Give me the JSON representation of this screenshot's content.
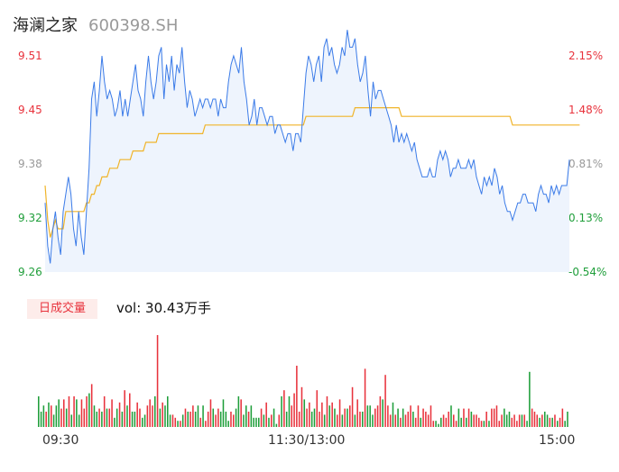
{
  "header": {
    "name": "海澜之家",
    "code": "600398.SH"
  },
  "chart_data": {
    "type": "line",
    "price_axis": {
      "left_ticks": [
        "9.51",
        "9.45",
        "9.38",
        "9.32",
        "9.26"
      ],
      "right_ticks": [
        "2.15%",
        "1.48%",
        "0.81%",
        "0.13%",
        "-0.54%"
      ],
      "ylim": [
        9.26,
        9.51
      ]
    },
    "x_ticks": [
      "09:30",
      "11:30/13:00",
      "15:00"
    ],
    "volume_badge": "日成交量",
    "volume_text": "vol: 30.43万手",
    "colors": {
      "price": "#3b7be8",
      "avg": "#f0b429",
      "up": "#e8323c",
      "down": "#1f9e3a",
      "fill": "#eef4fd"
    },
    "series": [
      {
        "values": [
          9.34,
          9.29,
          9.27,
          9.31,
          9.33,
          9.3,
          9.28,
          9.33,
          9.35,
          9.37,
          9.35,
          9.31,
          9.29,
          9.33,
          9.3,
          9.28,
          9.33,
          9.38,
          9.46,
          9.48,
          9.44,
          9.47,
          9.51,
          9.48,
          9.46,
          9.47,
          9.46,
          9.44,
          9.45,
          9.47,
          9.44,
          9.46,
          9.44,
          9.46,
          9.48,
          9.5,
          9.47,
          9.46,
          9.44,
          9.48,
          9.51,
          9.48,
          9.46,
          9.48,
          9.51,
          9.52,
          9.46,
          9.5,
          9.48,
          9.51,
          9.47,
          9.5,
          9.49,
          9.52,
          9.48,
          9.45,
          9.47,
          9.46,
          9.44,
          9.45,
          9.46,
          9.45,
          9.46,
          9.46,
          9.45,
          9.46,
          9.46,
          9.44,
          9.46,
          9.45,
          9.45,
          9.48,
          9.5,
          9.51,
          9.5,
          9.49,
          9.52,
          9.48,
          9.46,
          9.43,
          9.44,
          9.46,
          9.43,
          9.45,
          9.45,
          9.44,
          9.43,
          9.44,
          9.44,
          9.42,
          9.43,
          9.43,
          9.42,
          9.41,
          9.42,
          9.42,
          9.4,
          9.42,
          9.42,
          9.41,
          9.45,
          9.49,
          9.51,
          9.5,
          9.48,
          9.5,
          9.51,
          9.48,
          9.52,
          9.53,
          9.51,
          9.52,
          9.5,
          9.49,
          9.5,
          9.52,
          9.51,
          9.54,
          9.52,
          9.52,
          9.53,
          9.5,
          9.48,
          9.49,
          9.51,
          9.47,
          9.44,
          9.48,
          9.46,
          9.47,
          9.47,
          9.46,
          9.45,
          9.44,
          9.43,
          9.41,
          9.43,
          9.41,
          9.42,
          9.41,
          9.42,
          9.41,
          9.4,
          9.41,
          9.39,
          9.38,
          9.37,
          9.37,
          9.37,
          9.38,
          9.37,
          9.37,
          9.39,
          9.4,
          9.39,
          9.4,
          9.39,
          9.37,
          9.38,
          9.38,
          9.39,
          9.38,
          9.38,
          9.38,
          9.39,
          9.38,
          9.39,
          9.37,
          9.36,
          9.35,
          9.37,
          9.36,
          9.37,
          9.36,
          9.38,
          9.37,
          9.35,
          9.36,
          9.34,
          9.33,
          9.33,
          9.32,
          9.33,
          9.34,
          9.34,
          9.35,
          9.35,
          9.34,
          9.34,
          9.34,
          9.33,
          9.35,
          9.36,
          9.35,
          9.35,
          9.34,
          9.36,
          9.35,
          9.36,
          9.35,
          9.36,
          9.36,
          9.36,
          9.39
        ]
      },
      {
        "values": [
          9.36,
          9.32,
          9.3,
          9.31,
          9.32,
          9.31,
          9.31,
          9.31,
          9.33,
          9.33,
          9.33,
          9.33,
          9.33,
          9.33,
          9.33,
          9.33,
          9.34,
          9.34,
          9.35,
          9.35,
          9.36,
          9.36,
          9.37,
          9.37,
          9.37,
          9.38,
          9.38,
          9.38,
          9.38,
          9.39,
          9.39,
          9.39,
          9.39,
          9.39,
          9.4,
          9.4,
          9.4,
          9.4,
          9.4,
          9.41,
          9.41,
          9.41,
          9.41,
          9.41,
          9.42,
          9.42,
          9.42,
          9.42,
          9.42,
          9.42,
          9.42,
          9.42,
          9.42,
          9.42,
          9.42,
          9.42,
          9.42,
          9.42,
          9.42,
          9.42,
          9.42,
          9.42,
          9.43,
          9.43,
          9.43,
          9.43,
          9.43,
          9.43,
          9.43,
          9.43,
          9.43,
          9.43,
          9.43,
          9.43,
          9.43,
          9.43,
          9.43,
          9.43,
          9.43,
          9.43,
          9.43,
          9.43,
          9.43,
          9.43,
          9.43,
          9.43,
          9.43,
          9.43,
          9.43,
          9.43,
          9.43,
          9.43,
          9.43,
          9.43,
          9.43,
          9.43,
          9.43,
          9.43,
          9.43,
          9.43,
          9.43,
          9.44,
          9.44,
          9.44,
          9.44,
          9.44,
          9.44,
          9.44,
          9.44,
          9.44,
          9.44,
          9.44,
          9.44,
          9.44,
          9.44,
          9.44,
          9.44,
          9.44,
          9.44,
          9.44,
          9.45,
          9.45,
          9.45,
          9.45,
          9.45,
          9.45,
          9.45,
          9.45,
          9.45,
          9.45,
          9.45,
          9.45,
          9.45,
          9.45,
          9.45,
          9.45,
          9.45,
          9.45,
          9.44,
          9.44,
          9.44,
          9.44,
          9.44,
          9.44,
          9.44,
          9.44,
          9.44,
          9.44,
          9.44,
          9.44,
          9.44,
          9.44,
          9.44,
          9.44,
          9.44,
          9.44,
          9.44,
          9.44,
          9.44,
          9.44,
          9.44,
          9.44,
          9.44,
          9.44,
          9.44,
          9.44,
          9.44,
          9.44,
          9.44,
          9.44,
          9.44,
          9.44,
          9.44,
          9.44,
          9.44,
          9.44,
          9.44,
          9.44,
          9.44,
          9.44,
          9.44,
          9.43,
          9.43,
          9.43,
          9.43,
          9.43,
          9.43,
          9.43,
          9.43,
          9.43,
          9.43,
          9.43,
          9.43,
          9.43,
          9.43,
          9.43,
          9.43,
          9.43,
          9.43,
          9.43,
          9.43,
          9.43,
          9.43,
          9.43,
          9.43,
          9.43,
          9.43,
          9.43
        ]
      }
    ],
    "volume": {
      "values": [
        10,
        5,
        7,
        5,
        8,
        7,
        4,
        7,
        9,
        6,
        9,
        6,
        10,
        4,
        10,
        9,
        4,
        9,
        6,
        10,
        11,
        14,
        7,
        5,
        6,
        5,
        10,
        6,
        6,
        9,
        3,
        6,
        8,
        5,
        12,
        7,
        11,
        5,
        5,
        8,
        6,
        3,
        4,
        7,
        9,
        7,
        10,
        30,
        6,
        8,
        7,
        10,
        4,
        4,
        3,
        2,
        2,
        4,
        6,
        5,
        5,
        7,
        5,
        7,
        3,
        7,
        2,
        5,
        9,
        6,
        4,
        6,
        5,
        9,
        5,
        2,
        5,
        4,
        6,
        10,
        9,
        4,
        7,
        5,
        7,
        3,
        3,
        3,
        6,
        4,
        8,
        3,
        4,
        6,
        1,
        4,
        10,
        12,
        5,
        10,
        7,
        11,
        20,
        5,
        13,
        9,
        6,
        8,
        5,
        6,
        12,
        5,
        8,
        4,
        10,
        7,
        8,
        6,
        4,
        9,
        4,
        6,
        6,
        7,
        13,
        4,
        9,
        5,
        5,
        19,
        7,
        7,
        4,
        6,
        7,
        10,
        9,
        17,
        7,
        4,
        8,
        4,
        6,
        3,
        6,
        4,
        5,
        7,
        5,
        3,
        7,
        3,
        6,
        5,
        4,
        7,
        2,
        2,
        1,
        3,
        4,
        3,
        5,
        7,
        4,
        2,
        6,
        3,
        6,
        3,
        6,
        5,
        4,
        4,
        3,
        2,
        2,
        5,
        2,
        6,
        6,
        7,
        2,
        4,
        6,
        4,
        5,
        3,
        4,
        2,
        4,
        4,
        4,
        2,
        18,
        6,
        5,
        4,
        3,
        4,
        5,
        4,
        3,
        3,
        4,
        2,
        3,
        6,
        2,
        5
      ],
      "up": [
        0,
        0,
        0,
        1,
        0,
        1,
        0,
        0,
        0,
        1,
        1,
        0,
        1,
        0,
        1,
        0,
        0,
        1,
        1,
        1,
        0,
        1,
        0,
        0,
        1,
        0,
        1,
        0,
        1,
        1,
        0,
        0,
        1,
        0,
        1,
        0,
        1,
        0,
        0,
        1,
        1,
        0,
        0,
        1,
        1,
        1,
        0,
        1,
        0,
        1,
        0,
        0,
        0,
        1,
        1,
        0,
        1,
        0,
        1,
        0,
        1,
        1,
        0,
        0,
        1,
        0,
        1,
        1,
        1,
        0,
        1,
        1,
        0,
        0,
        0,
        0,
        1,
        1,
        0,
        0,
        1,
        0,
        0,
        1,
        0,
        0,
        0,
        0,
        1,
        0,
        1,
        0,
        1,
        0,
        0,
        1,
        0,
        1,
        0,
        0,
        1,
        1,
        1,
        1,
        1,
        0,
        1,
        1,
        0,
        0,
        1,
        1,
        1,
        0,
        1,
        0,
        1,
        0,
        1,
        1,
        0,
        1,
        0,
        1,
        1,
        0,
        1,
        1,
        0,
        1,
        0,
        0,
        0,
        1,
        1,
        1,
        0,
        1,
        1,
        1,
        0,
        1,
        0,
        1,
        0,
        1,
        1,
        1,
        0,
        1,
        1,
        0,
        1,
        1,
        1,
        1,
        1,
        0,
        0,
        0,
        1,
        1,
        1,
        0,
        1,
        1,
        0,
        0,
        1,
        0,
        1,
        0,
        1,
        1,
        1,
        1,
        0,
        1,
        0,
        1,
        1,
        1,
        1,
        1,
        0,
        0,
        0,
        1,
        1,
        1,
        1,
        0,
        1,
        0,
        0,
        1,
        1,
        1,
        0,
        1,
        0,
        0,
        1,
        0,
        1,
        0,
        1,
        1,
        0,
        0
      ]
    }
  }
}
